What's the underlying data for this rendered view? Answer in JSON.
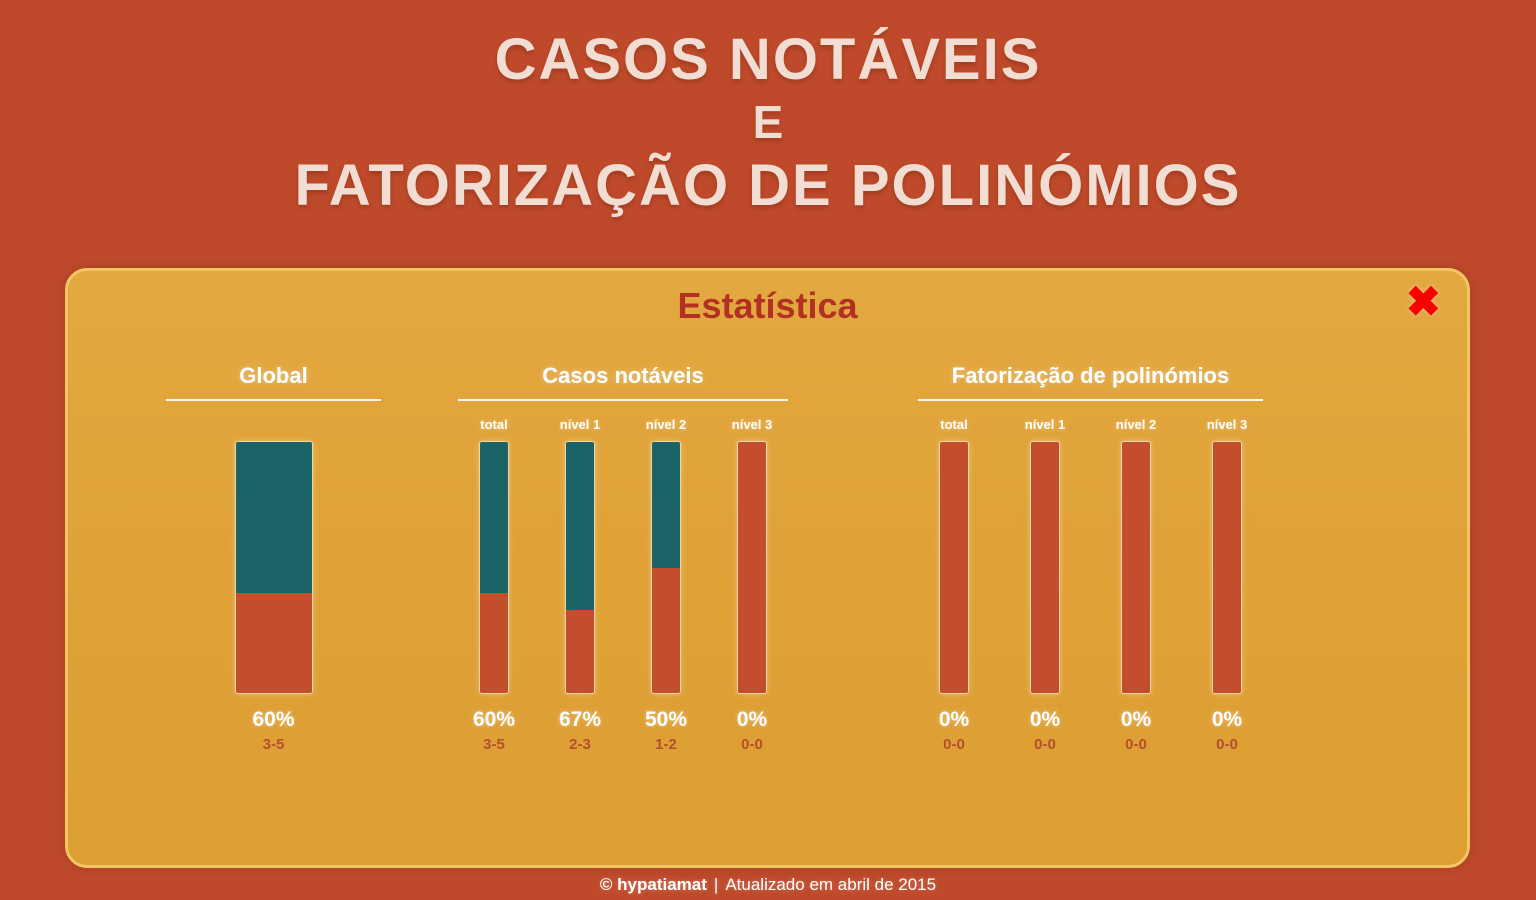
{
  "page": {
    "title_line1": "CASOS NOTÁVEIS",
    "title_line2": "E",
    "title_line3": "FATORIZAÇÃO DE POLINÓMIOS"
  },
  "panel": {
    "title": "Estatística",
    "close_glyph": "✖"
  },
  "groups": [
    {
      "heading": "Global",
      "bars": [
        {
          "label": "",
          "percent": "60%",
          "score": "3-5",
          "value": 60
        }
      ]
    },
    {
      "heading": "Casos notáveis",
      "bars": [
        {
          "label": "total",
          "percent": "60%",
          "score": "3-5",
          "value": 60
        },
        {
          "label": "nível 1",
          "percent": "67%",
          "score": "2-3",
          "value": 67
        },
        {
          "label": "nível 2",
          "percent": "50%",
          "score": "1-2",
          "value": 50
        },
        {
          "label": "nível 3",
          "percent": "0%",
          "score": "0-0",
          "value": 0
        }
      ]
    },
    {
      "heading": "Fatorização de polinómios",
      "bars": [
        {
          "label": "total",
          "percent": "0%",
          "score": "0-0",
          "value": 0
        },
        {
          "label": "nível 1",
          "percent": "0%",
          "score": "0-0",
          "value": 0
        },
        {
          "label": "nível 2",
          "percent": "0%",
          "score": "0-0",
          "value": 0
        },
        {
          "label": "nível 3",
          "percent": "0%",
          "score": "0-0",
          "value": 0
        }
      ]
    }
  ],
  "footer": {
    "brand": "© hypatiamat",
    "separator": "|",
    "updated": "Atualizado em abril de 2015"
  },
  "colors": {
    "background": "#bf4a2b",
    "panel": "#e0a338",
    "panel_border": "#f2c763",
    "panel_title": "#b23123",
    "close": "#fb0000",
    "bar_top": "#1a6367",
    "bar_bottom": "#c34e2d",
    "title_text": "#f2ddd3",
    "score_text": "#b5502e"
  },
  "chart_data": [
    {
      "type": "bar",
      "title": "Global",
      "categories": [
        "global"
      ],
      "values": [
        60
      ],
      "data_labels": [
        "60%"
      ],
      "score_labels": [
        "3-5"
      ],
      "ylim": [
        0,
        100
      ]
    },
    {
      "type": "bar",
      "title": "Casos notáveis",
      "categories": [
        "total",
        "nível 1",
        "nível 2",
        "nível 3"
      ],
      "values": [
        60,
        67,
        50,
        0
      ],
      "data_labels": [
        "60%",
        "67%",
        "50%",
        "0%"
      ],
      "score_labels": [
        "3-5",
        "2-3",
        "1-2",
        "0-0"
      ],
      "ylim": [
        0,
        100
      ]
    },
    {
      "type": "bar",
      "title": "Fatorização de polinómios",
      "categories": [
        "total",
        "nível 1",
        "nível 2",
        "nível 3"
      ],
      "values": [
        0,
        0,
        0,
        0
      ],
      "data_labels": [
        "0%",
        "0%",
        "0%",
        "0%"
      ],
      "score_labels": [
        "0-0",
        "0-0",
        "0-0",
        "0-0"
      ],
      "ylim": [
        0,
        100
      ]
    }
  ]
}
